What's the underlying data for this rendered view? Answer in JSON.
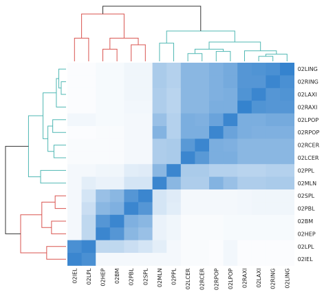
{
  "chart_data": {
    "type": "heatmap",
    "title": "",
    "row_labels": [
      "02LING",
      "02RING",
      "02LAXI",
      "02RAXI",
      "02LPOP",
      "02RPOP",
      "02RCER",
      "02LCER",
      "02PPL",
      "02MLN",
      "02SPL",
      "02PBL",
      "02BM",
      "02HEP",
      "02LPL",
      "02IEL"
    ],
    "col_labels": [
      "02IEL",
      "02LPL",
      "02HEP",
      "02BM",
      "02PBL",
      "02SPL",
      "02MLN",
      "02PPL",
      "02LCER",
      "02RCER",
      "02RPOP",
      "02LPOP",
      "02RAXI",
      "02LAXI",
      "02RING",
      "02LING"
    ],
    "values": [
      [
        0.02,
        0.02,
        0.04,
        0.04,
        0.07,
        0.07,
        0.4,
        0.35,
        0.55,
        0.55,
        0.6,
        0.65,
        0.8,
        0.82,
        0.85,
        0.95
      ],
      [
        0.02,
        0.02,
        0.04,
        0.04,
        0.07,
        0.07,
        0.4,
        0.35,
        0.55,
        0.55,
        0.6,
        0.65,
        0.8,
        0.8,
        0.92,
        0.85
      ],
      [
        0.02,
        0.02,
        0.04,
        0.04,
        0.07,
        0.07,
        0.38,
        0.33,
        0.55,
        0.55,
        0.6,
        0.62,
        0.82,
        0.92,
        0.8,
        0.82
      ],
      [
        0.02,
        0.02,
        0.04,
        0.04,
        0.06,
        0.06,
        0.38,
        0.33,
        0.55,
        0.55,
        0.62,
        0.62,
        0.95,
        0.82,
        0.8,
        0.8
      ],
      [
        0.06,
        0.06,
        0.04,
        0.04,
        0.05,
        0.05,
        0.48,
        0.35,
        0.62,
        0.6,
        0.7,
        0.92,
        0.62,
        0.62,
        0.65,
        0.65
      ],
      [
        0.02,
        0.02,
        0.03,
        0.03,
        0.05,
        0.05,
        0.58,
        0.35,
        0.62,
        0.62,
        0.92,
        0.7,
        0.62,
        0.6,
        0.6,
        0.6
      ],
      [
        0.03,
        0.03,
        0.03,
        0.03,
        0.05,
        0.05,
        0.38,
        0.4,
        0.78,
        0.92,
        0.62,
        0.6,
        0.55,
        0.55,
        0.55,
        0.55
      ],
      [
        0.03,
        0.03,
        0.03,
        0.03,
        0.05,
        0.05,
        0.38,
        0.4,
        0.92,
        0.78,
        0.62,
        0.62,
        0.55,
        0.55,
        0.55,
        0.55
      ],
      [
        0.05,
        0.05,
        0.07,
        0.07,
        0.14,
        0.15,
        0.55,
        0.92,
        0.4,
        0.4,
        0.35,
        0.35,
        0.33,
        0.33,
        0.35,
        0.35
      ],
      [
        0.05,
        0.13,
        0.1,
        0.1,
        0.2,
        0.2,
        0.92,
        0.55,
        0.38,
        0.38,
        0.58,
        0.48,
        0.38,
        0.38,
        0.4,
        0.4
      ],
      [
        0.05,
        0.2,
        0.48,
        0.55,
        0.8,
        0.92,
        0.2,
        0.15,
        0.05,
        0.05,
        0.05,
        0.05,
        0.06,
        0.07,
        0.07,
        0.07
      ],
      [
        0.05,
        0.25,
        0.55,
        0.6,
        0.92,
        0.8,
        0.2,
        0.14,
        0.05,
        0.05,
        0.05,
        0.05,
        0.06,
        0.07,
        0.07,
        0.07
      ],
      [
        0.05,
        0.3,
        0.8,
        0.92,
        0.6,
        0.55,
        0.1,
        0.07,
        0.03,
        0.03,
        0.03,
        0.04,
        0.04,
        0.04,
        0.04,
        0.04
      ],
      [
        0.05,
        0.3,
        0.92,
        0.8,
        0.55,
        0.48,
        0.1,
        0.07,
        0.03,
        0.03,
        0.03,
        0.04,
        0.04,
        0.04,
        0.04,
        0.04
      ],
      [
        0.85,
        0.92,
        0.3,
        0.3,
        0.25,
        0.2,
        0.13,
        0.05,
        0.03,
        0.03,
        0.02,
        0.06,
        0.02,
        0.02,
        0.02,
        0.02
      ],
      [
        0.92,
        0.85,
        0.05,
        0.05,
        0.05,
        0.05,
        0.05,
        0.05,
        0.03,
        0.03,
        0.02,
        0.06,
        0.02,
        0.02,
        0.02,
        0.02
      ]
    ],
    "color_scale": {
      "low": "#ffffff",
      "high": "#2a7ccb"
    },
    "dendrogram_colors": {
      "cluster_a": "#d9534f",
      "cluster_b": "#4fb7b3",
      "root": "#333333"
    },
    "legend": "none",
    "grid": false
  }
}
